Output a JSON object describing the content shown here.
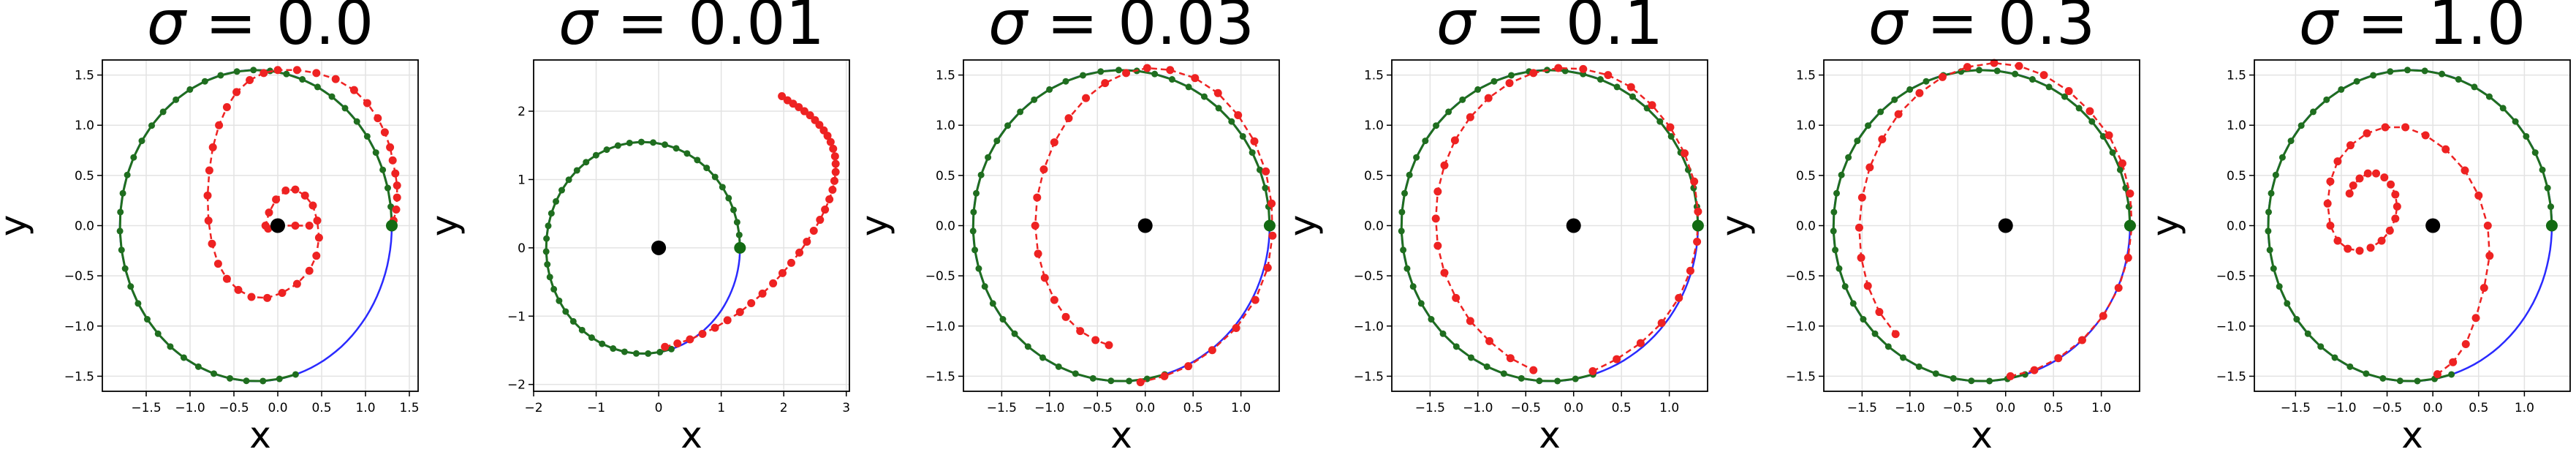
{
  "figure": {
    "layout": "1x6"
  },
  "chart_data": [
    {
      "type": "line",
      "title": "σ = 0.0",
      "title_greek": "σ",
      "title_value": "0.0",
      "xlabel": "x",
      "ylabel": "y",
      "xlim": [
        -2.0,
        1.6
      ],
      "ylim": [
        -1.65,
        1.65
      ],
      "xticks": [
        -1.5,
        -1.0,
        -0.5,
        0.0,
        0.5,
        1.0,
        1.5
      ],
      "xtick_labels": [
        "−1.5",
        "−1.0",
        "−0.5",
        "0.0",
        "0.5",
        "1.0",
        "1.5"
      ],
      "yticks": [
        -1.5,
        -1.0,
        -0.5,
        0.0,
        0.5,
        1.0,
        1.5
      ],
      "ytick_labels": [
        "−1.5",
        "−1.0",
        "−0.5",
        "0.0",
        "0.5",
        "1.0",
        "1.5"
      ],
      "grid": true,
      "circle": {
        "center": [
          -0.25,
          0.0
        ],
        "radius": 1.55,
        "start": [
          1.3,
          0.0
        ]
      },
      "red_dashed": [
        [
          1.32,
          0.05
        ],
        [
          1.35,
          0.16
        ],
        [
          1.36,
          0.28
        ],
        [
          1.36,
          0.4
        ],
        [
          1.34,
          0.52
        ],
        [
          1.31,
          0.65
        ],
        [
          1.28,
          0.78
        ],
        [
          1.22,
          0.93
        ],
        [
          1.14,
          1.07
        ],
        [
          1.02,
          1.22
        ],
        [
          0.87,
          1.35
        ],
        [
          0.66,
          1.46
        ],
        [
          0.44,
          1.52
        ],
        [
          0.22,
          1.55
        ],
        [
          0.0,
          1.55
        ],
        [
          -0.16,
          1.52
        ],
        [
          -0.32,
          1.45
        ],
        [
          -0.47,
          1.33
        ],
        [
          -0.58,
          1.18
        ],
        [
          -0.67,
          1.0
        ],
        [
          -0.74,
          0.78
        ],
        [
          -0.78,
          0.55
        ],
        [
          -0.8,
          0.3
        ],
        [
          -0.79,
          0.05
        ],
        [
          -0.75,
          -0.18
        ],
        [
          -0.68,
          -0.38
        ],
        [
          -0.58,
          -0.53
        ],
        [
          -0.45,
          -0.64
        ],
        [
          -0.3,
          -0.71
        ],
        [
          -0.12,
          -0.72
        ],
        [
          0.05,
          -0.67
        ],
        [
          0.22,
          -0.58
        ],
        [
          0.36,
          -0.45
        ],
        [
          0.44,
          -0.3
        ],
        [
          0.47,
          -0.12
        ],
        [
          0.45,
          0.05
        ],
        [
          0.4,
          0.2
        ],
        [
          0.31,
          0.3
        ],
        [
          0.2,
          0.36
        ],
        [
          0.09,
          0.35
        ],
        [
          -0.02,
          0.26
        ],
        [
          -0.1,
          0.13
        ],
        [
          -0.14,
          0.0
        ],
        [
          -0.11,
          -0.03
        ],
        [
          0.0,
          0.0
        ],
        [
          0.2,
          0.0
        ],
        [
          0.36,
          0.0
        ]
      ]
    },
    {
      "type": "line",
      "title": "σ = 0.01",
      "title_greek": "σ",
      "title_value": "0.01",
      "xlabel": "x",
      "ylabel": "y",
      "xlim": [
        -2.0,
        3.05
      ],
      "ylim": [
        -2.1,
        2.75
      ],
      "xticks": [
        -2,
        -1,
        0,
        1,
        2,
        3
      ],
      "xtick_labels": [
        "−2",
        "−1",
        "0",
        "1",
        "2",
        "3"
      ],
      "yticks": [
        -2,
        -1,
        0,
        1,
        2
      ],
      "ytick_labels": [
        "−2",
        "−1",
        "0",
        "1",
        "2"
      ],
      "grid": true,
      "circle": {
        "center": [
          -0.25,
          0.0
        ],
        "radius": 1.55,
        "start": [
          1.3,
          0.0
        ]
      },
      "red_dashed": [
        [
          0.1,
          -1.45
        ],
        [
          0.3,
          -1.4
        ],
        [
          0.5,
          -1.34
        ],
        [
          0.7,
          -1.26
        ],
        [
          0.9,
          -1.17
        ],
        [
          1.1,
          -1.06
        ],
        [
          1.3,
          -0.94
        ],
        [
          1.48,
          -0.81
        ],
        [
          1.66,
          -0.67
        ],
        [
          1.83,
          -0.52
        ],
        [
          1.98,
          -0.37
        ],
        [
          2.12,
          -0.22
        ],
        [
          2.25,
          -0.07
        ],
        [
          2.37,
          0.09
        ],
        [
          2.48,
          0.25
        ],
        [
          2.58,
          0.41
        ],
        [
          2.66,
          0.56
        ],
        [
          2.73,
          0.71
        ],
        [
          2.78,
          0.85
        ],
        [
          2.81,
          0.98
        ],
        [
          2.83,
          1.11
        ],
        [
          2.83,
          1.23
        ],
        [
          2.82,
          1.34
        ],
        [
          2.79,
          1.45
        ],
        [
          2.75,
          1.55
        ],
        [
          2.7,
          1.64
        ],
        [
          2.64,
          1.72
        ],
        [
          2.57,
          1.8
        ],
        [
          2.5,
          1.87
        ],
        [
          2.42,
          1.94
        ],
        [
          2.33,
          2.0
        ],
        [
          2.24,
          2.06
        ],
        [
          2.15,
          2.11
        ],
        [
          2.06,
          2.16
        ],
        [
          1.97,
          2.22
        ]
      ]
    },
    {
      "type": "line",
      "title": "σ = 0.03",
      "title_greek": "σ",
      "title_value": "0.03",
      "xlabel": "x",
      "ylabel": "y",
      "xlim": [
        -1.9,
        1.4
      ],
      "ylim": [
        -1.65,
        1.65
      ],
      "xticks": [
        -1.5,
        -1.0,
        -0.5,
        0.0,
        0.5,
        1.0
      ],
      "xtick_labels": [
        "−1.5",
        "−1.0",
        "−0.5",
        "0.0",
        "0.5",
        "1.0"
      ],
      "yticks": [
        -1.5,
        -1.0,
        -0.5,
        0.0,
        0.5,
        1.0,
        1.5
      ],
      "ytick_labels": [
        "−1.5",
        "−1.0",
        "−0.5",
        "0.0",
        "0.5",
        "1.0",
        "1.5"
      ],
      "grid": true,
      "circle": {
        "center": [
          -0.25,
          0.0
        ],
        "radius": 1.55,
        "start": [
          1.3,
          0.0
        ]
      },
      "red_dashed": [
        [
          -0.05,
          -1.56
        ],
        [
          0.2,
          -1.5
        ],
        [
          0.45,
          -1.4
        ],
        [
          0.7,
          -1.24
        ],
        [
          0.95,
          -1.02
        ],
        [
          1.15,
          -0.74
        ],
        [
          1.28,
          -0.42
        ],
        [
          1.33,
          -0.1
        ],
        [
          1.32,
          0.22
        ],
        [
          1.26,
          0.54
        ],
        [
          1.14,
          0.84
        ],
        [
          0.97,
          1.1
        ],
        [
          0.76,
          1.32
        ],
        [
          0.52,
          1.47
        ],
        [
          0.26,
          1.55
        ],
        [
          0.02,
          1.57
        ],
        [
          -0.2,
          1.52
        ],
        [
          -0.42,
          1.42
        ],
        [
          -0.62,
          1.27
        ],
        [
          -0.8,
          1.07
        ],
        [
          -0.95,
          0.83
        ],
        [
          -1.06,
          0.56
        ],
        [
          -1.13,
          0.28
        ],
        [
          -1.15,
          0.0
        ],
        [
          -1.12,
          -0.28
        ],
        [
          -1.05,
          -0.52
        ],
        [
          -0.95,
          -0.74
        ],
        [
          -0.83,
          -0.91
        ],
        [
          -0.68,
          -1.05
        ],
        [
          -0.52,
          -1.14
        ],
        [
          -0.38,
          -1.19
        ]
      ]
    },
    {
      "type": "line",
      "title": "σ = 0.1",
      "title_greek": "σ",
      "title_value": "0.1",
      "xlabel": "x",
      "ylabel": "y",
      "xlim": [
        -1.9,
        1.4
      ],
      "ylim": [
        -1.65,
        1.65
      ],
      "xticks": [
        -1.5,
        -1.0,
        -0.5,
        0.0,
        0.5,
        1.0
      ],
      "xtick_labels": [
        "−1.5",
        "−1.0",
        "−0.5",
        "0.0",
        "0.5",
        "1.0"
      ],
      "yticks": [
        -1.5,
        -1.0,
        -0.5,
        0.0,
        0.5,
        1.0,
        1.5
      ],
      "ytick_labels": [
        "−1.5",
        "−1.0",
        "−0.5",
        "0.0",
        "0.5",
        "1.0",
        "1.5"
      ],
      "grid": true,
      "circle": {
        "center": [
          -0.25,
          0.0
        ],
        "radius": 1.55,
        "start": [
          1.3,
          0.0
        ]
      },
      "red_dashed": [
        [
          0.2,
          -1.45
        ],
        [
          0.45,
          -1.33
        ],
        [
          0.7,
          -1.17
        ],
        [
          0.92,
          -0.97
        ],
        [
          1.1,
          -0.72
        ],
        [
          1.22,
          -0.45
        ],
        [
          1.29,
          -0.16
        ],
        [
          1.3,
          0.14
        ],
        [
          1.26,
          0.44
        ],
        [
          1.16,
          0.72
        ],
        [
          1.01,
          0.98
        ],
        [
          0.82,
          1.2
        ],
        [
          0.6,
          1.38
        ],
        [
          0.36,
          1.5
        ],
        [
          0.1,
          1.56
        ],
        [
          -0.16,
          1.57
        ],
        [
          -0.42,
          1.52
        ],
        [
          -0.67,
          1.42
        ],
        [
          -0.89,
          1.27
        ],
        [
          -1.08,
          1.08
        ],
        [
          -1.24,
          0.85
        ],
        [
          -1.35,
          0.6
        ],
        [
          -1.42,
          0.34
        ],
        [
          -1.44,
          0.07
        ],
        [
          -1.42,
          -0.2
        ],
        [
          -1.35,
          -0.47
        ],
        [
          -1.23,
          -0.72
        ],
        [
          -1.08,
          -0.95
        ],
        [
          -0.88,
          -1.15
        ],
        [
          -0.66,
          -1.32
        ],
        [
          -0.42,
          -1.44
        ]
      ]
    },
    {
      "type": "line",
      "title": "σ = 0.3",
      "title_greek": "σ",
      "title_value": "0.3",
      "xlabel": "x",
      "ylabel": "y",
      "xlim": [
        -1.9,
        1.4
      ],
      "ylim": [
        -1.65,
        1.65
      ],
      "xticks": [
        -1.5,
        -1.0,
        -0.5,
        0.0,
        0.5,
        1.0
      ],
      "xtick_labels": [
        "−1.5",
        "−1.0",
        "−0.5",
        "0.0",
        "0.5",
        "1.0"
      ],
      "yticks": [
        -1.5,
        -1.0,
        -0.5,
        0.0,
        0.5,
        1.0,
        1.5
      ],
      "ytick_labels": [
        "−1.5",
        "−1.0",
        "−0.5",
        "0.0",
        "0.5",
        "1.0",
        "1.5"
      ],
      "grid": true,
      "circle": {
        "center": [
          -0.25,
          0.0
        ],
        "radius": 1.55,
        "start": [
          1.3,
          0.0
        ]
      },
      "red_dashed": [
        [
          0.05,
          -1.5
        ],
        [
          0.3,
          -1.44
        ],
        [
          0.55,
          -1.32
        ],
        [
          0.8,
          -1.14
        ],
        [
          1.02,
          -0.9
        ],
        [
          1.18,
          -0.62
        ],
        [
          1.28,
          -0.32
        ],
        [
          1.32,
          0.0
        ],
        [
          1.3,
          0.32
        ],
        [
          1.22,
          0.62
        ],
        [
          1.08,
          0.9
        ],
        [
          0.88,
          1.14
        ],
        [
          0.66,
          1.34
        ],
        [
          0.4,
          1.5
        ],
        [
          0.14,
          1.59
        ],
        [
          -0.12,
          1.62
        ],
        [
          -0.4,
          1.58
        ],
        [
          -0.66,
          1.48
        ],
        [
          -0.9,
          1.32
        ],
        [
          -1.12,
          1.11
        ],
        [
          -1.29,
          0.86
        ],
        [
          -1.42,
          0.58
        ],
        [
          -1.5,
          0.28
        ],
        [
          -1.53,
          -0.02
        ],
        [
          -1.51,
          -0.32
        ],
        [
          -1.44,
          -0.6
        ],
        [
          -1.32,
          -0.86
        ],
        [
          -1.15,
          -1.08
        ]
      ]
    },
    {
      "type": "line",
      "title": "σ = 1.0",
      "title_greek": "σ",
      "title_value": "1.0",
      "xlabel": "x",
      "ylabel": "y",
      "xlim": [
        -1.95,
        1.5
      ],
      "ylim": [
        -1.65,
        1.65
      ],
      "xticks": [
        -1.5,
        -1.0,
        -0.5,
        0.0,
        0.5,
        1.0
      ],
      "xtick_labels": [
        "−1.5",
        "−1.0",
        "−0.5",
        "0.0",
        "0.5",
        "1.0"
      ],
      "yticks": [
        -1.5,
        -1.0,
        -0.5,
        0.0,
        0.5,
        1.0,
        1.5
      ],
      "ytick_labels": [
        "−1.5",
        "−1.0",
        "−0.5",
        "0.0",
        "0.5",
        "1.0",
        "1.5"
      ],
      "grid": true,
      "circle": {
        "center": [
          -0.25,
          0.0
        ],
        "radius": 1.55,
        "start": [
          1.3,
          0.0
        ]
      },
      "red_dashed": [
        [
          0.05,
          -1.48
        ],
        [
          0.22,
          -1.36
        ],
        [
          0.36,
          -1.18
        ],
        [
          0.47,
          -0.92
        ],
        [
          0.56,
          -0.62
        ],
        [
          0.62,
          -0.3
        ],
        [
          0.6,
          0.0
        ],
        [
          0.5,
          0.3
        ],
        [
          0.35,
          0.55
        ],
        [
          0.14,
          0.76
        ],
        [
          -0.08,
          0.9
        ],
        [
          -0.3,
          0.98
        ],
        [
          -0.52,
          0.98
        ],
        [
          -0.72,
          0.92
        ],
        [
          -0.9,
          0.8
        ],
        [
          -1.04,
          0.64
        ],
        [
          -1.12,
          0.44
        ],
        [
          -1.15,
          0.22
        ],
        [
          -1.12,
          0.0
        ],
        [
          -1.04,
          -0.15
        ],
        [
          -0.93,
          -0.23
        ],
        [
          -0.8,
          -0.25
        ],
        [
          -0.68,
          -0.22
        ],
        [
          -0.56,
          -0.15
        ],
        [
          -0.47,
          -0.05
        ],
        [
          -0.41,
          0.07
        ],
        [
          -0.39,
          0.19
        ],
        [
          -0.41,
          0.31
        ],
        [
          -0.46,
          0.41
        ],
        [
          -0.53,
          0.48
        ],
        [
          -0.62,
          0.52
        ],
        [
          -0.71,
          0.52
        ],
        [
          -0.8,
          0.47
        ],
        [
          -0.87,
          0.4
        ],
        [
          -0.91,
          0.32
        ]
      ]
    }
  ]
}
